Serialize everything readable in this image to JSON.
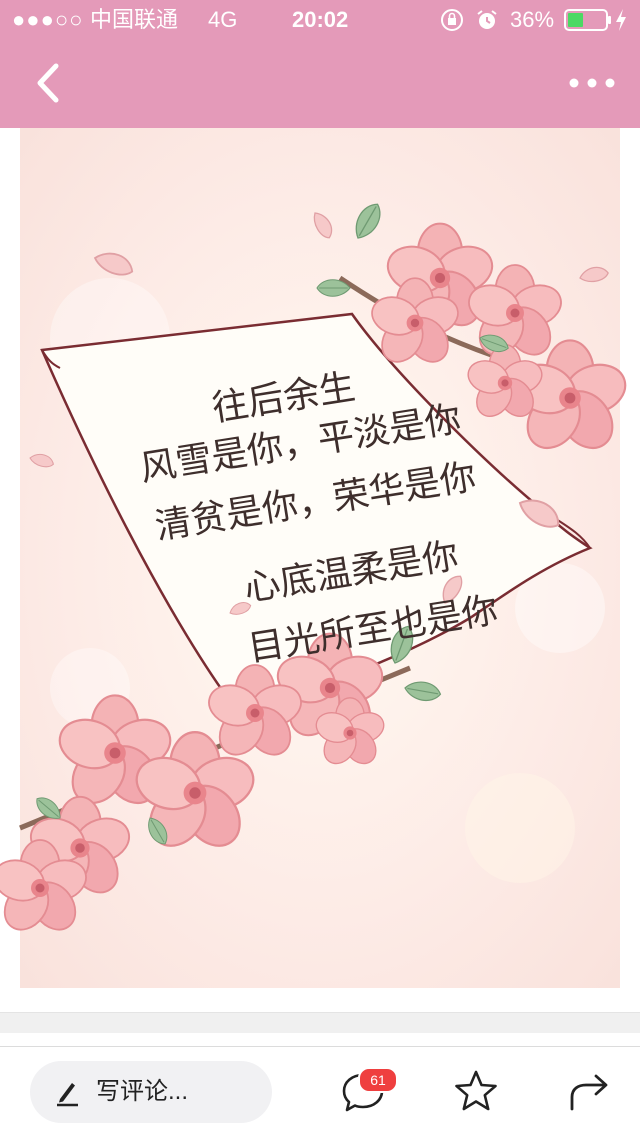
{
  "status_bar": {
    "signal": "●●●○○",
    "carrier": "中国联通",
    "network": "4G",
    "time": "20:02",
    "battery_percent": "36%"
  },
  "nav": {
    "back_icon": "chevron-left-icon",
    "more_icon": "more-dots-icon"
  },
  "poem": {
    "lines": [
      "往后余生",
      "风雪是你，平淡是你",
      "清贫是你，荣华是你",
      "心底温柔是你",
      "目光所至也是你"
    ]
  },
  "bottom_bar": {
    "comment_placeholder": "写评论...",
    "comment_count": "61",
    "icons": [
      "pencil-icon",
      "chat-bubble-icon",
      "star-icon",
      "share-arrow-icon"
    ]
  },
  "colors": {
    "header": "#e49ab9",
    "badge": "#ef3f3f",
    "blossom": "#f2a8ae",
    "leaf": "#8fb38c"
  }
}
